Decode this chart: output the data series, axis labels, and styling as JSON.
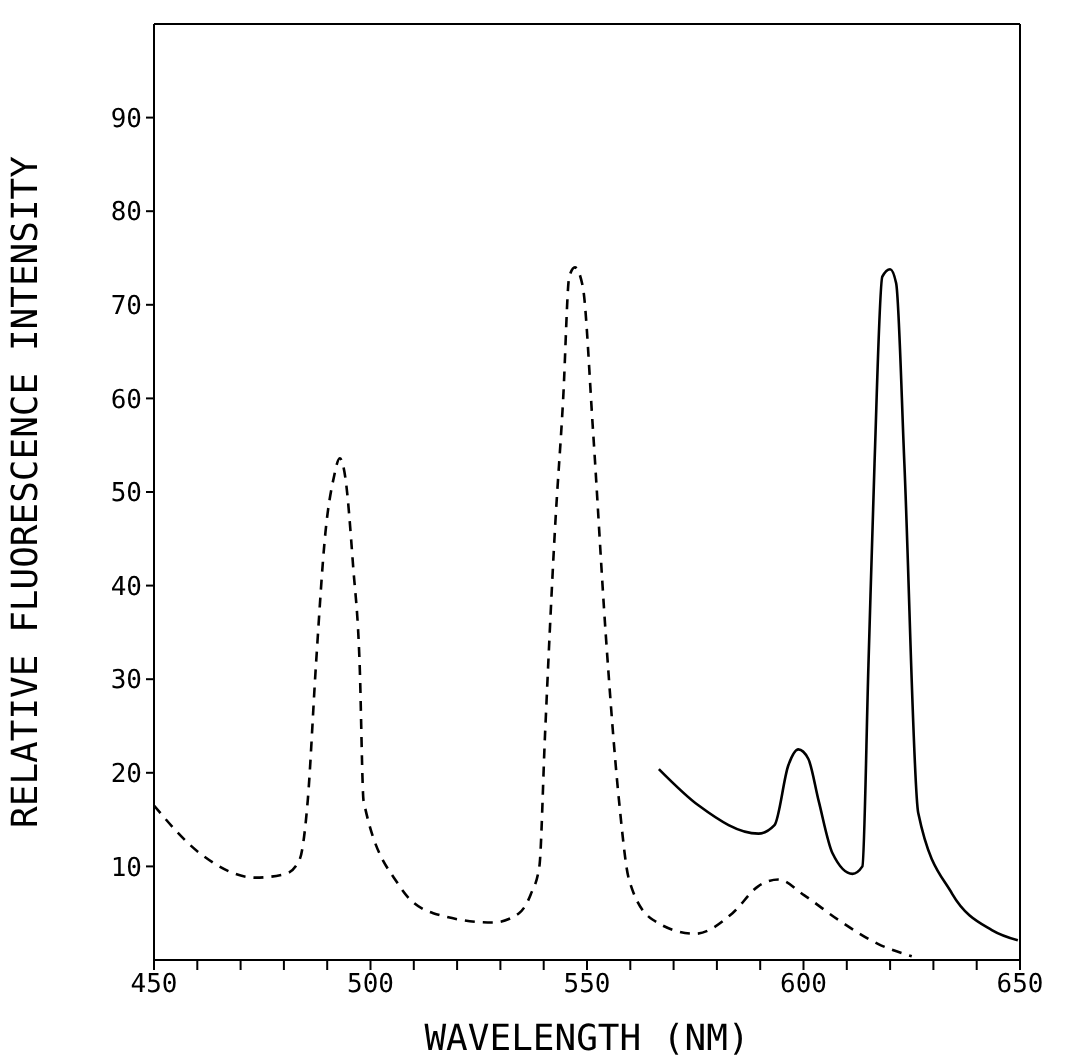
{
  "chart_data": {
    "type": "line",
    "xlabel": "WAVELENGTH (NM)",
    "ylabel": "RELATIVE FLUORESCENCE INTENSITY",
    "xlim": [
      450,
      650
    ],
    "ylim": [
      0,
      100
    ],
    "xticks": [
      450,
      {
        "value": 460,
        "label": null
      },
      {
        "value": 470,
        "label": null
      },
      {
        "value": 480,
        "label": null
      },
      {
        "value": 490,
        "label": null
      },
      500,
      {
        "value": 510,
        "label": null
      },
      {
        "value": 520,
        "label": null
      },
      {
        "value": 530,
        "label": null
      },
      {
        "value": 540,
        "label": null
      },
      550,
      {
        "value": 560,
        "label": null
      },
      {
        "value": 570,
        "label": null
      },
      {
        "value": 580,
        "label": null
      },
      {
        "value": 590,
        "label": null
      },
      600,
      {
        "value": 610,
        "label": null
      },
      {
        "value": 620,
        "label": null
      },
      {
        "value": 630,
        "label": null
      },
      {
        "value": 640,
        "label": null
      },
      650
    ],
    "yticks": [
      10,
      20,
      30,
      40,
      50,
      60,
      70,
      80,
      90
    ],
    "grid": false,
    "marker": "none",
    "series": [
      {
        "color": "#000000",
        "line_style": "dashed",
        "x": [
          450,
          460.6,
          473.5,
          480.4,
          483.6,
          485.5,
          487.4,
          489.6,
          491.5,
          492.9,
          494.2,
          496,
          497.5,
          498.4,
          506.7,
          514.5,
          528.3,
          534.3,
          537,
          539,
          540.3,
          542.6,
          544.5,
          545.9,
          547.2,
          549,
          551.4,
          554.3,
          557.4,
          559.7,
          565.2,
          575,
          583.6,
          589.6,
          594.2,
          600.2,
          608,
          617.3,
          625
        ],
        "values": [
          16.5,
          11.4,
          8.8,
          9.2,
          10.7,
          17,
          31.5,
          45.7,
          51.5,
          53.6,
          51.5,
          42,
          31.5,
          17,
          7.9,
          5,
          4,
          5,
          7,
          10,
          24,
          46,
          60,
          73,
          74,
          72,
          56.5,
          35,
          17,
          8.6,
          4.3,
          2.8,
          5,
          7.9,
          8.6,
          6.9,
          4.3,
          1.7,
          0.4
        ]
      },
      {
        "color": "#000000",
        "line_style": "solid",
        "x": [
          566.6,
          575.8,
          589.6,
          593.3,
          596.5,
          598.8,
          601.1,
          603.5,
          606.7,
          611.3,
          613.6,
          615,
          616.4,
          618.2,
          620,
          621.4,
          623.3,
          626.5,
          634.3,
          643.5,
          649.5
        ],
        "values": [
          20.4,
          16.5,
          13.5,
          14.4,
          20.8,
          22.5,
          21.5,
          17,
          11.4,
          9.2,
          10,
          31.5,
          53,
          73,
          73.8,
          72.3,
          53,
          15.7,
          7.1,
          3.2,
          2.1
        ]
      }
    ]
  }
}
